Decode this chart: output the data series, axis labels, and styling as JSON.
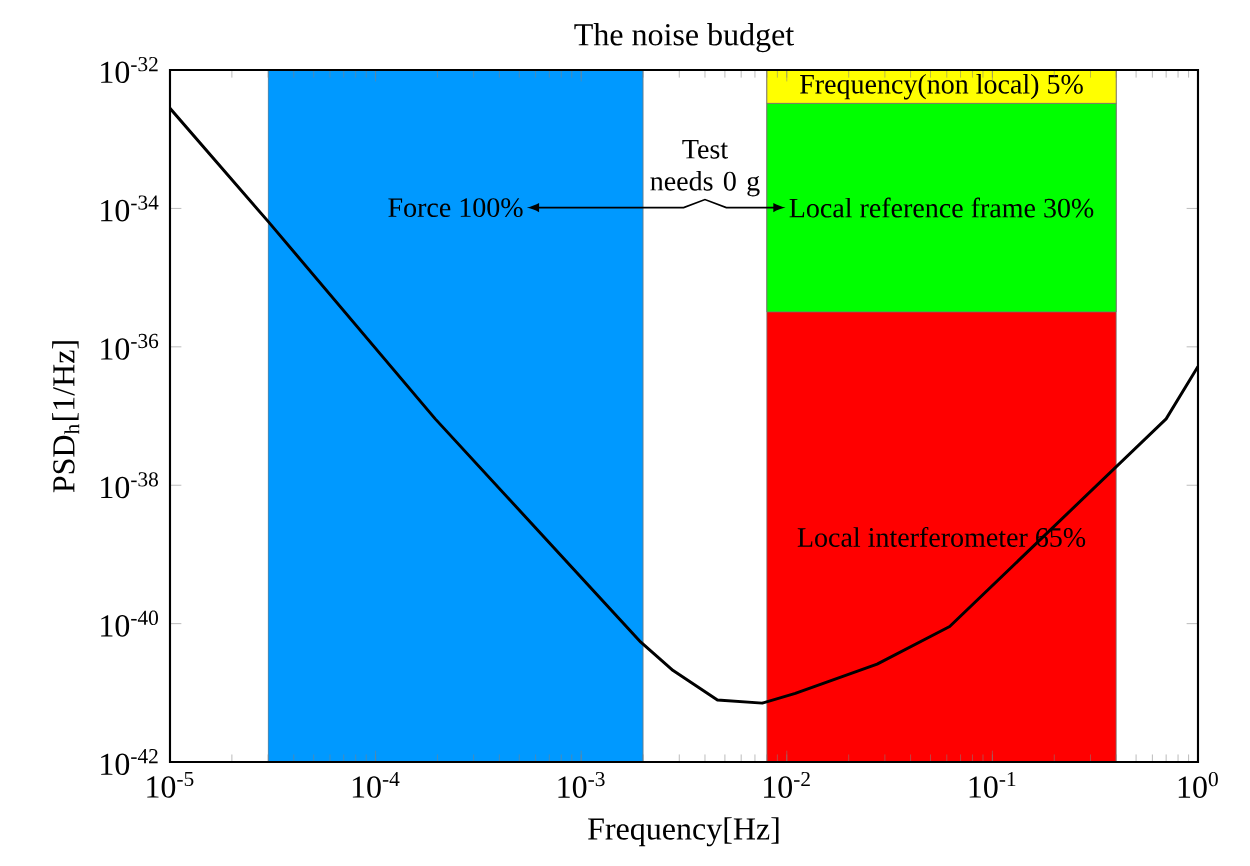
{
  "chart_data": {
    "type": "line",
    "title": "The noise budget",
    "xlabel": "Frequency[Hz]",
    "ylabel": "PSD$_{h}$[1/Hz]",
    "log": "xy",
    "xlim": [
      1e-05,
      1
    ],
    "ylim": [
      1e-42,
      1e-32
    ],
    "xticks": [
      {
        "value": 1e-05,
        "label": "10$^{-5}$"
      },
      {
        "value": 0.0001,
        "label": "10$^{-4}$"
      },
      {
        "value": 0.001,
        "label": "10$^{-3}$"
      },
      {
        "value": 0.01,
        "label": "10$^{-2}$"
      },
      {
        "value": 0.1,
        "label": "10$^{-1}$"
      },
      {
        "value": 1,
        "label": "10$^{0}$"
      }
    ],
    "yticks": [
      {
        "value": 1e-42,
        "label": "10$^{-42}$"
      },
      {
        "value": 1e-40,
        "label": "10$^{-40}$"
      },
      {
        "value": 1e-38,
        "label": "10$^{-38}$"
      },
      {
        "value": 1e-36,
        "label": "10$^{-36}$"
      },
      {
        "value": 1e-34,
        "label": "10$^{-34}$"
      },
      {
        "value": 1e-32,
        "label": "10$^{-32}$"
      }
    ],
    "x": [
      1e-05,
      3e-05,
      0.000195,
      0.00195,
      0.0028,
      0.0046,
      0.0076,
      0.011,
      0.0275,
      0.062,
      0.7,
      1.0
    ],
    "series": [
      {
        "color": "#000000",
        "values": [
          2.8e-33,
          6.5e-35,
          9.1e-38,
          5.4e-41,
          2.1e-41,
          7.9e-42,
          7.1e-42,
          9.8e-42,
          2.6e-41,
          9.1e-41,
          9.1e-38,
          5.2e-37
        ]
      }
    ],
    "bands": [
      {
        "axis": "x",
        "from": 3e-05,
        "to": 0.002,
        "color": "#0099ff",
        "label": "Force  100%"
      },
      {
        "axis": "x",
        "from": 0.008,
        "to": 0.4,
        "color": "#ff0000",
        "label": "Local interferometer 65%"
      },
      {
        "axis": "y",
        "from": 3.2e-36,
        "to": 3.3e-33,
        "color": "#00ff00",
        "label": "Local reference frame 30%"
      },
      {
        "axis": "y",
        "from": 3.3e-33,
        "to": 1e-32,
        "color": "#ffff00",
        "label": "Frequency(non local) 5%"
      }
    ],
    "annotations": [
      "Test needs 0 g"
    ],
    "grid": false,
    "line_style": "solid",
    "marker": "none"
  }
}
